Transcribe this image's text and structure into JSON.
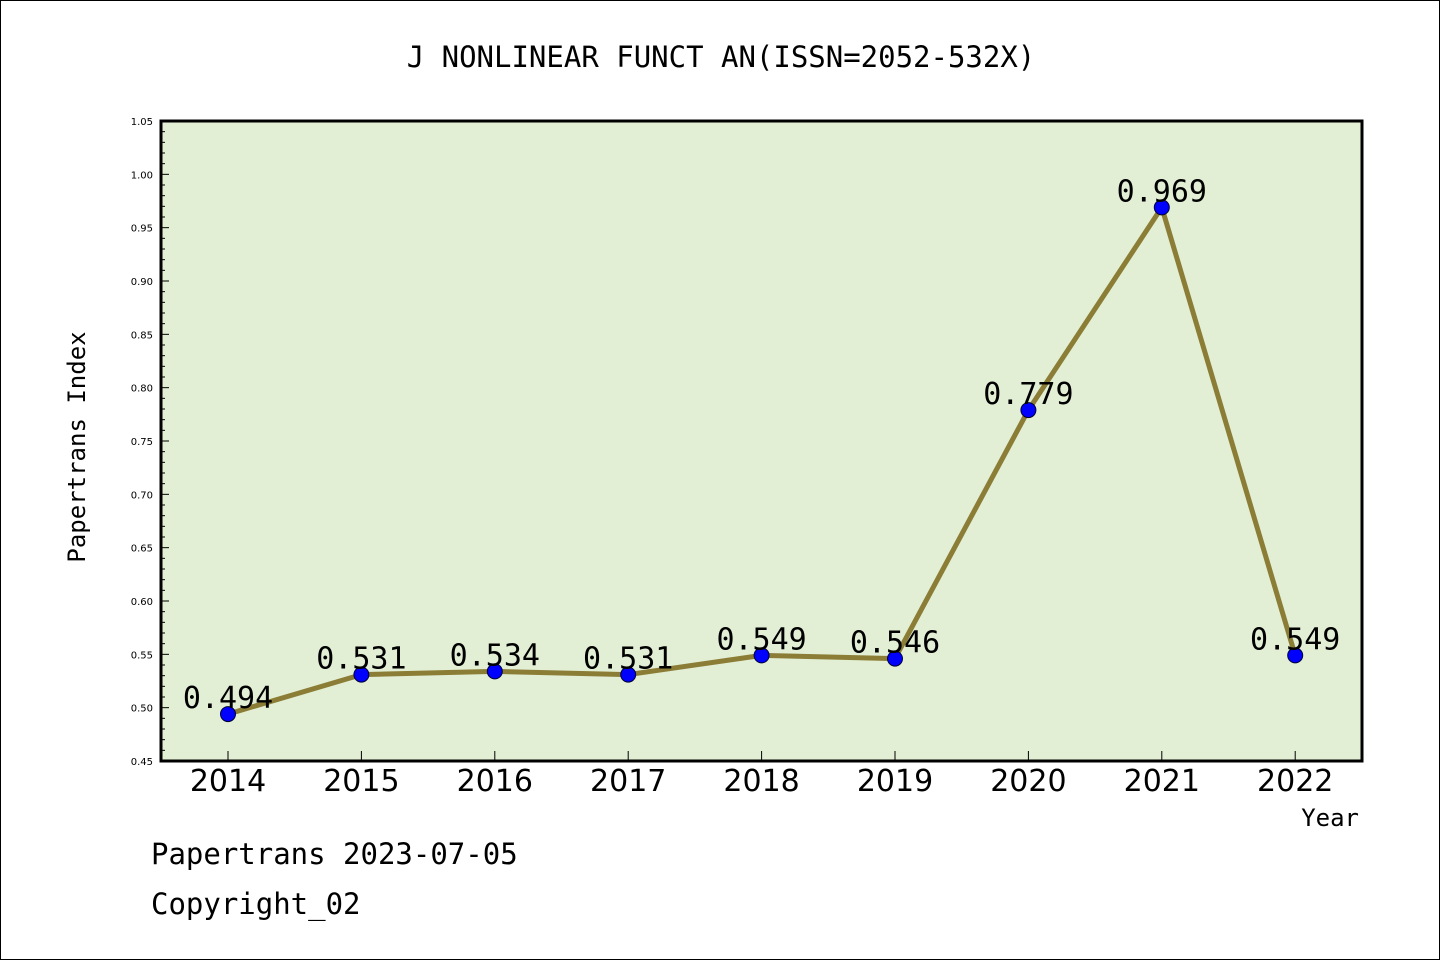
{
  "chart_data": {
    "type": "line",
    "title": "J NONLINEAR FUNCT AN(ISSN=2052-532X)",
    "xlabel": "Year",
    "ylabel": "Papertrans Index",
    "categories": [
      "2014",
      "2015",
      "2016",
      "2017",
      "2018",
      "2019",
      "2020",
      "2021",
      "2022"
    ],
    "series": [
      {
        "values": [
          0.494,
          0.531,
          0.534,
          0.531,
          0.549,
          0.546,
          0.779,
          0.969,
          0.549
        ],
        "labels": [
          "0.494",
          "0.531",
          "0.534",
          "0.531",
          "0.549",
          "0.546",
          "0.779",
          "0.969",
          "0.549"
        ]
      }
    ],
    "ylim": [
      0.45,
      1.05
    ],
    "yticks": [
      "0.45",
      "0.50",
      "0.55",
      "0.60",
      "0.65",
      "0.70",
      "0.75",
      "0.80",
      "0.85",
      "0.90",
      "0.95",
      "1.00",
      "1.05"
    ],
    "grid": false,
    "colors": {
      "plot_background": "#e2efd5",
      "line": "#8b7d35",
      "marker": "#0000ff"
    }
  },
  "footer": {
    "date_line": "Papertrans 2023-07-05",
    "copyright": "Copyright_02"
  }
}
